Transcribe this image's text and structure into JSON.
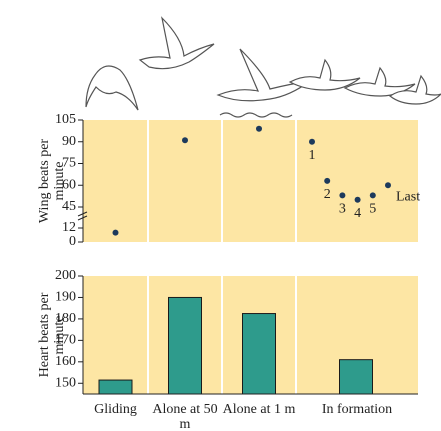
{
  "top_chart": {
    "type": "dot",
    "y_label": "Wing beats per minute",
    "ylim": [
      0,
      105
    ],
    "yticks": [
      0,
      12,
      45,
      60,
      75,
      90,
      105
    ],
    "axis_break": [
      12,
      45
    ],
    "values": [
      8,
      91,
      99
    ],
    "formation_labels": [
      "1",
      "2",
      "3",
      "4",
      "5",
      "Last"
    ],
    "formation_values": [
      90,
      63,
      53,
      50,
      53,
      60
    ],
    "color": "#1d3a5c",
    "background": "#fde6a4"
  },
  "chart_data": {
    "type": "bar",
    "y_label": "Heart beats per minute",
    "categories": [
      "Gliding",
      "Alone at 50 m",
      "Alone at 1 m",
      "In formation"
    ],
    "values": [
      151.5,
      190,
      182.5,
      161
    ],
    "ylim": [
      145,
      200
    ],
    "yticks": [
      150,
      160,
      170,
      180,
      190,
      200
    ],
    "color": "#2e9b8c",
    "background": "#fde6a4"
  }
}
